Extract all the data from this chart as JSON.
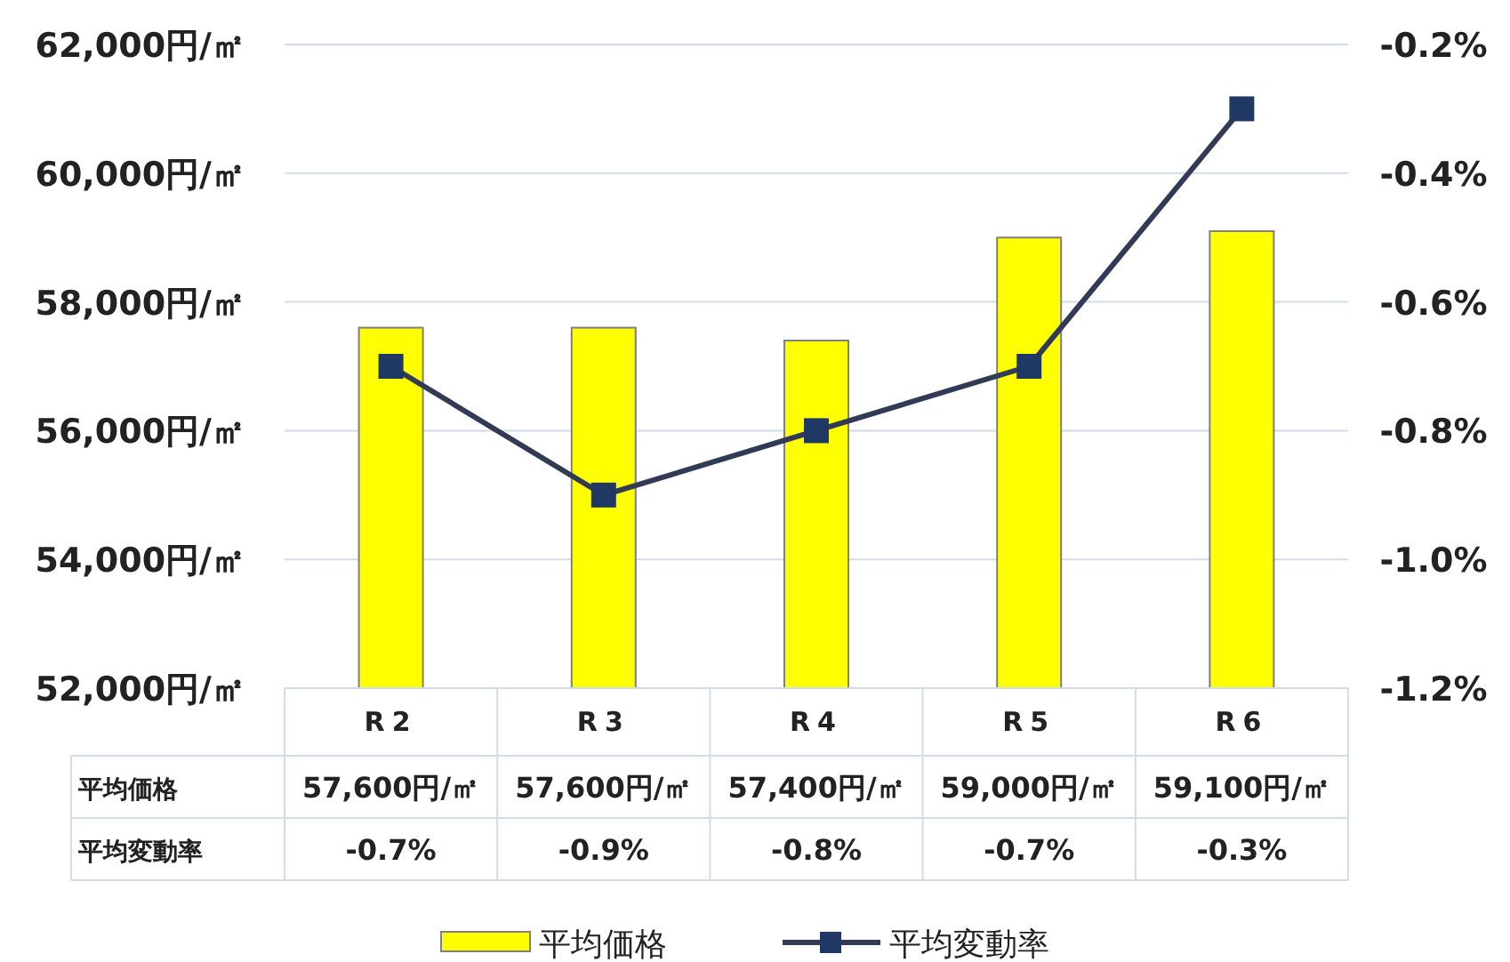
{
  "chart_data": {
    "type": "bar",
    "categories": [
      "R2",
      "R3",
      "R4",
      "R5",
      "R6"
    ],
    "ylim": [
      52000,
      62000
    ],
    "yticks": [
      {
        "value": 52000,
        "label": "52,000円/㎡"
      },
      {
        "value": 54000,
        "label": "54,000円/㎡"
      },
      {
        "value": 56000,
        "label": "56,000円/㎡"
      },
      {
        "value": 58000,
        "label": "58,000円/㎡"
      },
      {
        "value": 60000,
        "label": "60,000円/㎡"
      },
      {
        "value": 62000,
        "label": "62,000円/㎡"
      }
    ],
    "y2lim": [
      -1.2,
      -0.2
    ],
    "y2ticks": [
      {
        "value": -1.2,
        "label": "-1.2%"
      },
      {
        "value": -1.0,
        "label": "-1.0%"
      },
      {
        "value": -0.8,
        "label": "-0.8%"
      },
      {
        "value": -0.6,
        "label": "-0.6%"
      },
      {
        "value": -0.4,
        "label": "-0.4%"
      },
      {
        "value": -0.2,
        "label": "-0.2%"
      }
    ],
    "grid": "y",
    "legend": "bottom",
    "series": [
      {
        "name": "平均価格",
        "color": "#ffff00",
        "values": [
          57600,
          57600,
          57400,
          59000,
          59100
        ],
        "value_labels": [
          "57,600円/㎡",
          "57,600円/㎡",
          "57,400円/㎡",
          "59,000円/㎡",
          "59,100円/㎡"
        ]
      },
      {
        "name": "平均変動率",
        "type": "line",
        "axis": "y2",
        "color": "#323b55",
        "marker": "square",
        "values": [
          -0.7,
          -0.9,
          -0.8,
          -0.7,
          -0.3
        ],
        "value_labels": [
          "-0.7%",
          "-0.9%",
          "-0.8%",
          "-0.7%",
          "-0.3%"
        ]
      }
    ]
  }
}
